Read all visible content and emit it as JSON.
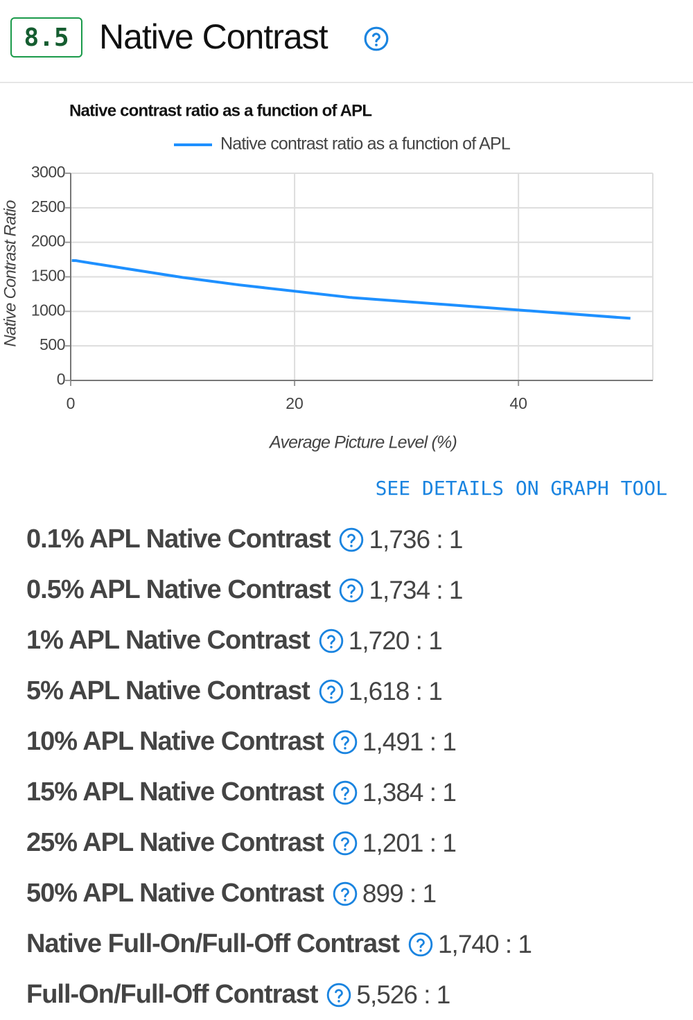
{
  "header": {
    "score": "8.5",
    "title": "Native Contrast"
  },
  "chart_data": {
    "type": "line",
    "title": "Native contrast ratio as a function of APL",
    "x_label": "Average Picture Level (%)",
    "y_label": "Native Contrast Ratio",
    "x": [
      0.1,
      0.5,
      1,
      5,
      10,
      15,
      25,
      50
    ],
    "series": [
      {
        "name": "Native contrast ratio as a function of APL",
        "color": "#1e90ff",
        "values": [
          1736,
          1734,
          1720,
          1618,
          1491,
          1384,
          1201,
          899
        ]
      }
    ],
    "xlim": [
      0,
      52
    ],
    "xticks": [
      0,
      20,
      40
    ],
    "ylim": [
      0,
      3000
    ],
    "yticks": [
      0,
      500,
      1000,
      1500,
      2000,
      2500,
      3000
    ],
    "grid": true,
    "legend": "top"
  },
  "link": "SEE DETAILS ON GRAPH TOOL",
  "measurements": [
    {
      "label": "0.1% APL Native Contrast",
      "value": "1,736 : 1"
    },
    {
      "label": "0.5% APL Native Contrast",
      "value": "1,734 : 1"
    },
    {
      "label": "1% APL Native Contrast",
      "value": "1,720 : 1"
    },
    {
      "label": "5% APL Native Contrast",
      "value": "1,618 : 1"
    },
    {
      "label": "10% APL Native Contrast",
      "value": "1,491 : 1"
    },
    {
      "label": "15% APL Native Contrast",
      "value": "1,384 : 1"
    },
    {
      "label": "25% APL Native Contrast",
      "value": "1,201 : 1"
    },
    {
      "label": "50% APL Native Contrast",
      "value": "899 : 1"
    },
    {
      "label": "Native Full-On/Full-Off Contrast",
      "value": "1,740 : 1"
    },
    {
      "label": "Full-On/Full-Off Contrast",
      "value": "5,526 : 1"
    }
  ]
}
